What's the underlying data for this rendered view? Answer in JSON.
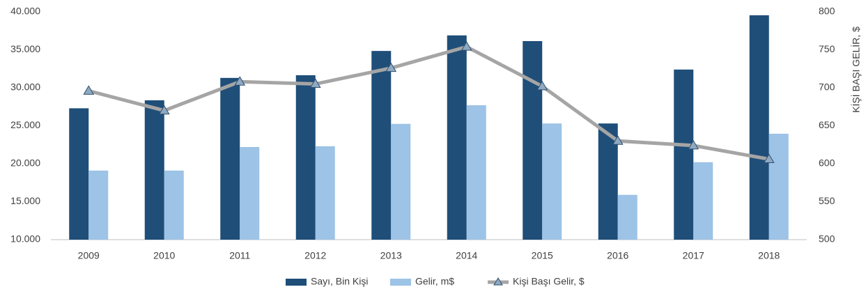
{
  "chart_data": {
    "type": "bar",
    "categories": [
      "2009",
      "2010",
      "2011",
      "2012",
      "2013",
      "2014",
      "2015",
      "2016",
      "2017",
      "2018"
    ],
    "series": [
      {
        "name": "Sayı, Bin Kişi",
        "color": "#1f4e79",
        "values": [
          27300,
          28350,
          31300,
          31650,
          34850,
          36900,
          36150,
          25300,
          32400,
          39550
        ]
      },
      {
        "name": "Gelir, m$",
        "color": "#9dc3e6",
        "values": [
          19100,
          19100,
          22200,
          22300,
          25250,
          27700,
          25300,
          15900,
          20200,
          23950
        ]
      },
      {
        "name": "Kişi Başı Gelir, $",
        "color": "#a5a5a5",
        "marker_color": "#8ea9c1",
        "type": "line",
        "axis": "y2",
        "values": [
          696,
          670,
          708,
          705,
          726,
          754,
          702,
          630,
          624,
          606
        ]
      }
    ],
    "ylim": [
      10000,
      40000
    ],
    "yticks": [
      {
        "value": 10000,
        "label": "10.000"
      },
      {
        "value": 15000,
        "label": "15.000"
      },
      {
        "value": 20000,
        "label": "20.000"
      },
      {
        "value": 25000,
        "label": "25.000"
      },
      {
        "value": 30000,
        "label": "30.000"
      },
      {
        "value": 35000,
        "label": "35.000"
      },
      {
        "value": 40000,
        "label": "40.000"
      }
    ],
    "y2lim": [
      500,
      800
    ],
    "y2ticks": [
      500,
      550,
      600,
      650,
      700,
      750,
      800
    ],
    "y2label": "KİŞİ BAŞI GELİR, $",
    "grid": false,
    "legend": "bottom"
  }
}
